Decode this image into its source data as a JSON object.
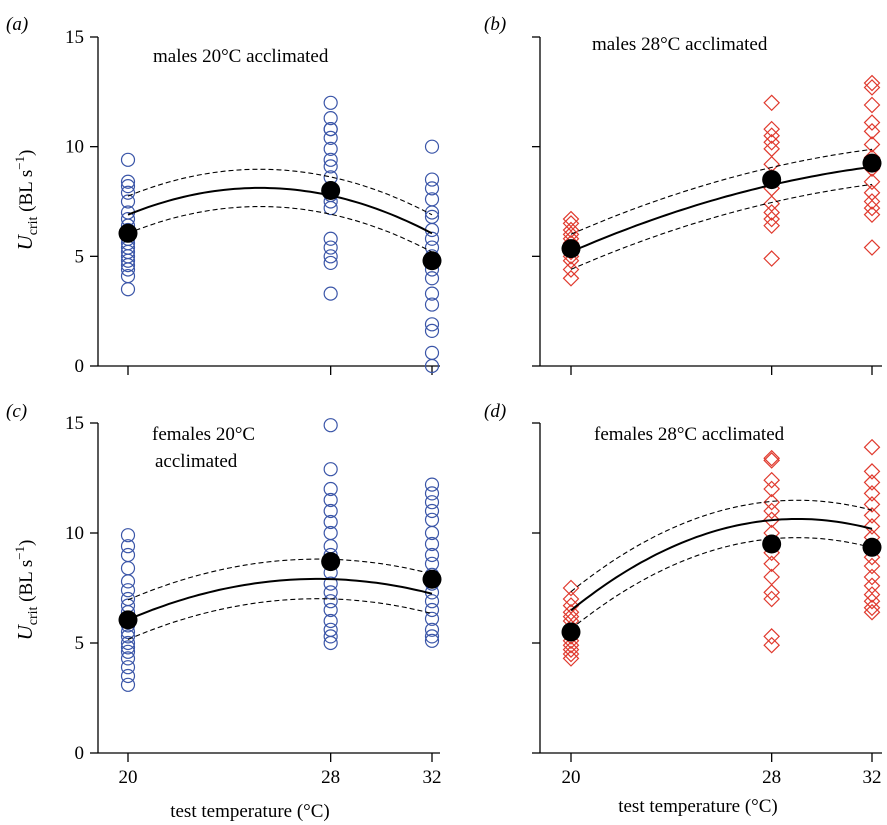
{
  "chart_data": [
    {
      "type": "scatter",
      "panel_label": "(a)",
      "title": "males 20°C acclimated",
      "xlabel": "",
      "ylabel": {
        "main": "U",
        "sub": "crit",
        "unit_pre": " (BL s",
        "unit_sup": "−1",
        "unit_post": ")"
      },
      "xticks": [
        20,
        28,
        32
      ],
      "yticks": [
        0,
        5,
        10,
        15
      ],
      "xlim": [
        18.2,
        32.6
      ],
      "ylim": [
        0,
        15
      ],
      "marker": "circle",
      "color": "#3a55a8",
      "points": {
        "20": [
          3.5,
          4.1,
          4.4,
          4.6,
          4.8,
          5.0,
          5.2,
          5.4,
          5.6,
          5.8,
          6.0,
          6.2,
          6.4,
          6.7,
          7.0,
          7.5,
          7.9,
          8.2,
          8.4,
          9.4
        ],
        "28": [
          3.3,
          4.7,
          5.0,
          5.4,
          5.8,
          7.2,
          7.5,
          7.8,
          8.1,
          8.6,
          9.1,
          9.4,
          9.9,
          10.4,
          10.8,
          10.8,
          11.3,
          12.0
        ],
        "32": [
          0.0,
          0.6,
          1.6,
          1.9,
          2.8,
          3.3,
          4.0,
          4.4,
          4.8,
          5.0,
          5.4,
          5.8,
          6.2,
          6.8,
          7.0,
          7.6,
          8.1,
          8.5,
          10.0
        ]
      },
      "means": [
        {
          "x": 20,
          "y": 6.05
        },
        {
          "x": 28,
          "y": 8.0
        },
        {
          "x": 32,
          "y": 4.8
        }
      ],
      "fit": {
        "a": -20.5164,
        "b": 2.2717,
        "c": -0.045053
      },
      "band_halfwidth": 0.85
    },
    {
      "type": "scatter",
      "panel_label": "(b)",
      "title": "males 28°C  acclimated",
      "xlabel": "",
      "ylabel": null,
      "xticks": [
        20,
        28,
        32
      ],
      "yticks": [
        0,
        5,
        10,
        15
      ],
      "xlim": [
        18.2,
        32.6
      ],
      "ylim": [
        0,
        15
      ],
      "marker": "diamond",
      "color": "#e03a2e",
      "points": {
        "20": [
          4.0,
          4.4,
          4.8,
          5.0,
          5.2,
          5.4,
          5.6,
          5.8,
          6.0,
          6.2,
          6.5,
          6.7
        ],
        "28": [
          4.9,
          6.4,
          6.7,
          7.0,
          7.4,
          8.1,
          8.6,
          9.2,
          9.9,
          10.2,
          10.5,
          10.8,
          12.0
        ],
        "32": [
          5.4,
          6.9,
          7.2,
          7.5,
          7.9,
          8.4,
          9.0,
          9.5,
          10.1,
          10.7,
          11.1,
          11.9,
          12.7,
          12.9
        ]
      },
      "means": [
        {
          "x": 20,
          "y": 5.35
        },
        {
          "x": 28,
          "y": 8.5
        },
        {
          "x": 32,
          "y": 9.25
        }
      ],
      "fit": {
        "a": -10.5833,
        "b": 1.081,
        "c": -0.01458
      },
      "band_halfwidth": 0.8
    },
    {
      "type": "scatter",
      "panel_label": "(c)",
      "title": "females 20°C",
      "title_line2": "acclimated",
      "xlabel": "",
      "ylabel": {
        "main": "U",
        "sub": "crit",
        "unit_pre": " (BL s",
        "unit_sup": "−1",
        "unit_post": ")"
      },
      "xticks": [
        20,
        28,
        32
      ],
      "yticks": [
        0,
        5,
        10,
        15
      ],
      "xlim": [
        18.2,
        32.6
      ],
      "ylim": [
        0,
        15
      ],
      "marker": "circle",
      "color": "#3a55a8",
      "points": {
        "20": [
          3.1,
          3.5,
          3.9,
          4.3,
          4.6,
          4.8,
          5.0,
          5.3,
          5.5,
          5.8,
          6.1,
          6.4,
          6.7,
          7.0,
          7.4,
          7.8,
          8.4,
          9.0,
          9.4,
          9.9
        ],
        "28": [
          5.0,
          5.3,
          5.6,
          6.0,
          6.5,
          6.9,
          7.3,
          7.7,
          8.2,
          8.6,
          9.0,
          9.4,
          10.0,
          10.5,
          11.0,
          11.5,
          12.0,
          12.9,
          14.9
        ],
        "32": [
          5.1,
          5.3,
          5.6,
          6.1,
          6.5,
          6.9,
          7.3,
          7.7,
          8.1,
          8.6,
          9.0,
          9.5,
          10.0,
          10.6,
          11.0,
          11.4,
          11.8,
          12.2
        ]
      },
      "means": [
        {
          "x": 20,
          "y": 6.05
        },
        {
          "x": 28,
          "y": 8.7
        },
        {
          "x": 32,
          "y": 7.9
        }
      ],
      "fit": {
        "a": -17.0583,
        "b": 1.8169,
        "c": -0.03305
      },
      "band_halfwidth": 0.9
    },
    {
      "type": "scatter",
      "panel_label": "(d)",
      "title": "females 28°C acclimated",
      "xlabel": "test temperature (°C)",
      "ylabel": null,
      "xticks": [
        20,
        28,
        32
      ],
      "yticks": [
        0,
        5,
        10,
        15
      ],
      "xlim": [
        18.2,
        32.6
      ],
      "ylim": [
        0,
        15
      ],
      "marker": "diamond",
      "color": "#e03a2e",
      "points": {
        "20": [
          4.3,
          4.5,
          4.7,
          4.9,
          5.1,
          5.3,
          5.5,
          5.7,
          6.0,
          6.2,
          6.4,
          6.7,
          7.0,
          7.5
        ],
        "28": [
          4.9,
          5.3,
          7.0,
          7.3,
          8.0,
          8.6,
          9.1,
          9.5,
          10.0,
          10.6,
          11.0,
          11.4,
          12.0,
          12.4,
          13.3,
          13.4
        ],
        "32": [
          6.4,
          6.6,
          6.9,
          7.2,
          7.6,
          8.0,
          8.5,
          8.9,
          9.3,
          9.8,
          10.3,
          10.8,
          11.3,
          11.8,
          12.3,
          12.8,
          13.9
        ]
      },
      "means": [
        {
          "x": 20,
          "y": 5.5
        },
        {
          "x": 28,
          "y": 9.5
        },
        {
          "x": 32,
          "y": 9.35
        }
      ],
      "fit": {
        "a": -32.35,
        "b": 2.9625,
        "c": -0.05104
      },
      "band_halfwidth": 0.85
    }
  ],
  "shared_xlabel_left": "test temperature (°C)"
}
